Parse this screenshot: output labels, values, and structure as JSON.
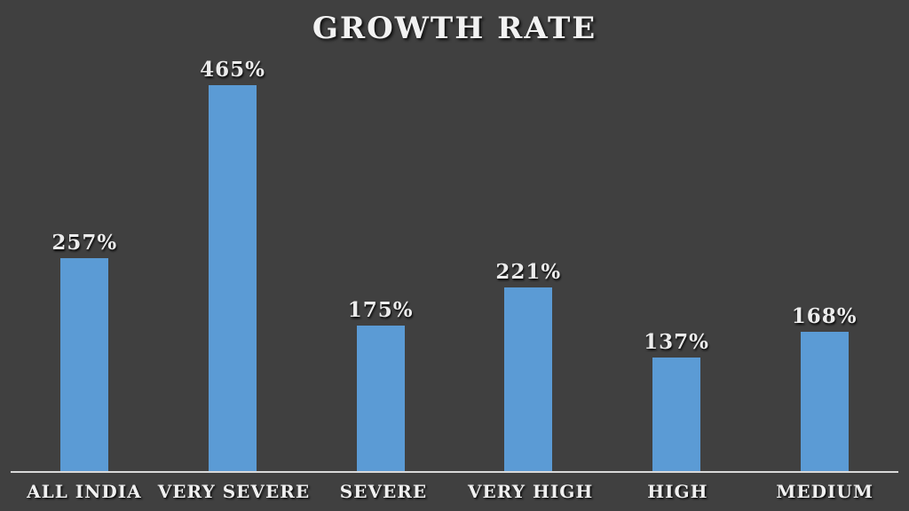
{
  "chart_data": {
    "type": "bar",
    "title": "GROWTH RATE",
    "categories": [
      "ALL INDIA",
      "VERY SEVERE",
      "SEVERE",
      "VERY HIGH",
      "HIGH",
      "MEDIUM"
    ],
    "values": [
      257,
      465,
      175,
      221,
      137,
      168
    ],
    "value_labels": [
      "257%",
      "465%",
      "175%",
      "221%",
      "137%",
      "168%"
    ],
    "xlabel": "",
    "ylabel": "",
    "ylim": [
      0,
      465
    ],
    "grid": false,
    "legend": false,
    "bar_color": "#5B9BD5",
    "background_color": "#404040",
    "axis_line_color": "#D9D9D9",
    "text_color": "#F2F2F2"
  }
}
